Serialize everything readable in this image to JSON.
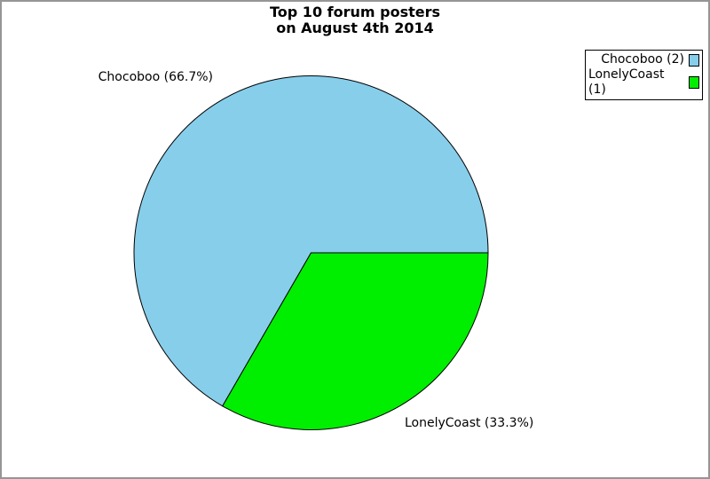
{
  "title": {
    "line1": "Top 10 forum posters",
    "line2": "on August 4th 2014"
  },
  "chart_data": {
    "type": "pie",
    "title": "Top 10 forum posters on August 4th 2014",
    "total": 3,
    "legend_position": "top-right",
    "start_angle_deg": 0,
    "direction": "counterclockwise",
    "slices": [
      {
        "label": "Chocoboo",
        "value": 2,
        "percent": 66.7,
        "callout": "Chocoboo (66.7%)",
        "legend_label": "Chocoboo (2)",
        "color": "#87CEEB"
      },
      {
        "label": "LonelyCoast",
        "value": 1,
        "percent": 33.3,
        "callout": "LonelyCoast (33.3%)",
        "legend_label": "LonelyCoast (1)",
        "color": "#00EE00"
      }
    ]
  },
  "colors": {
    "slice_outline": "#000000",
    "frame_border": "#969696",
    "background": "#FFFFFF",
    "text": "#000000"
  }
}
